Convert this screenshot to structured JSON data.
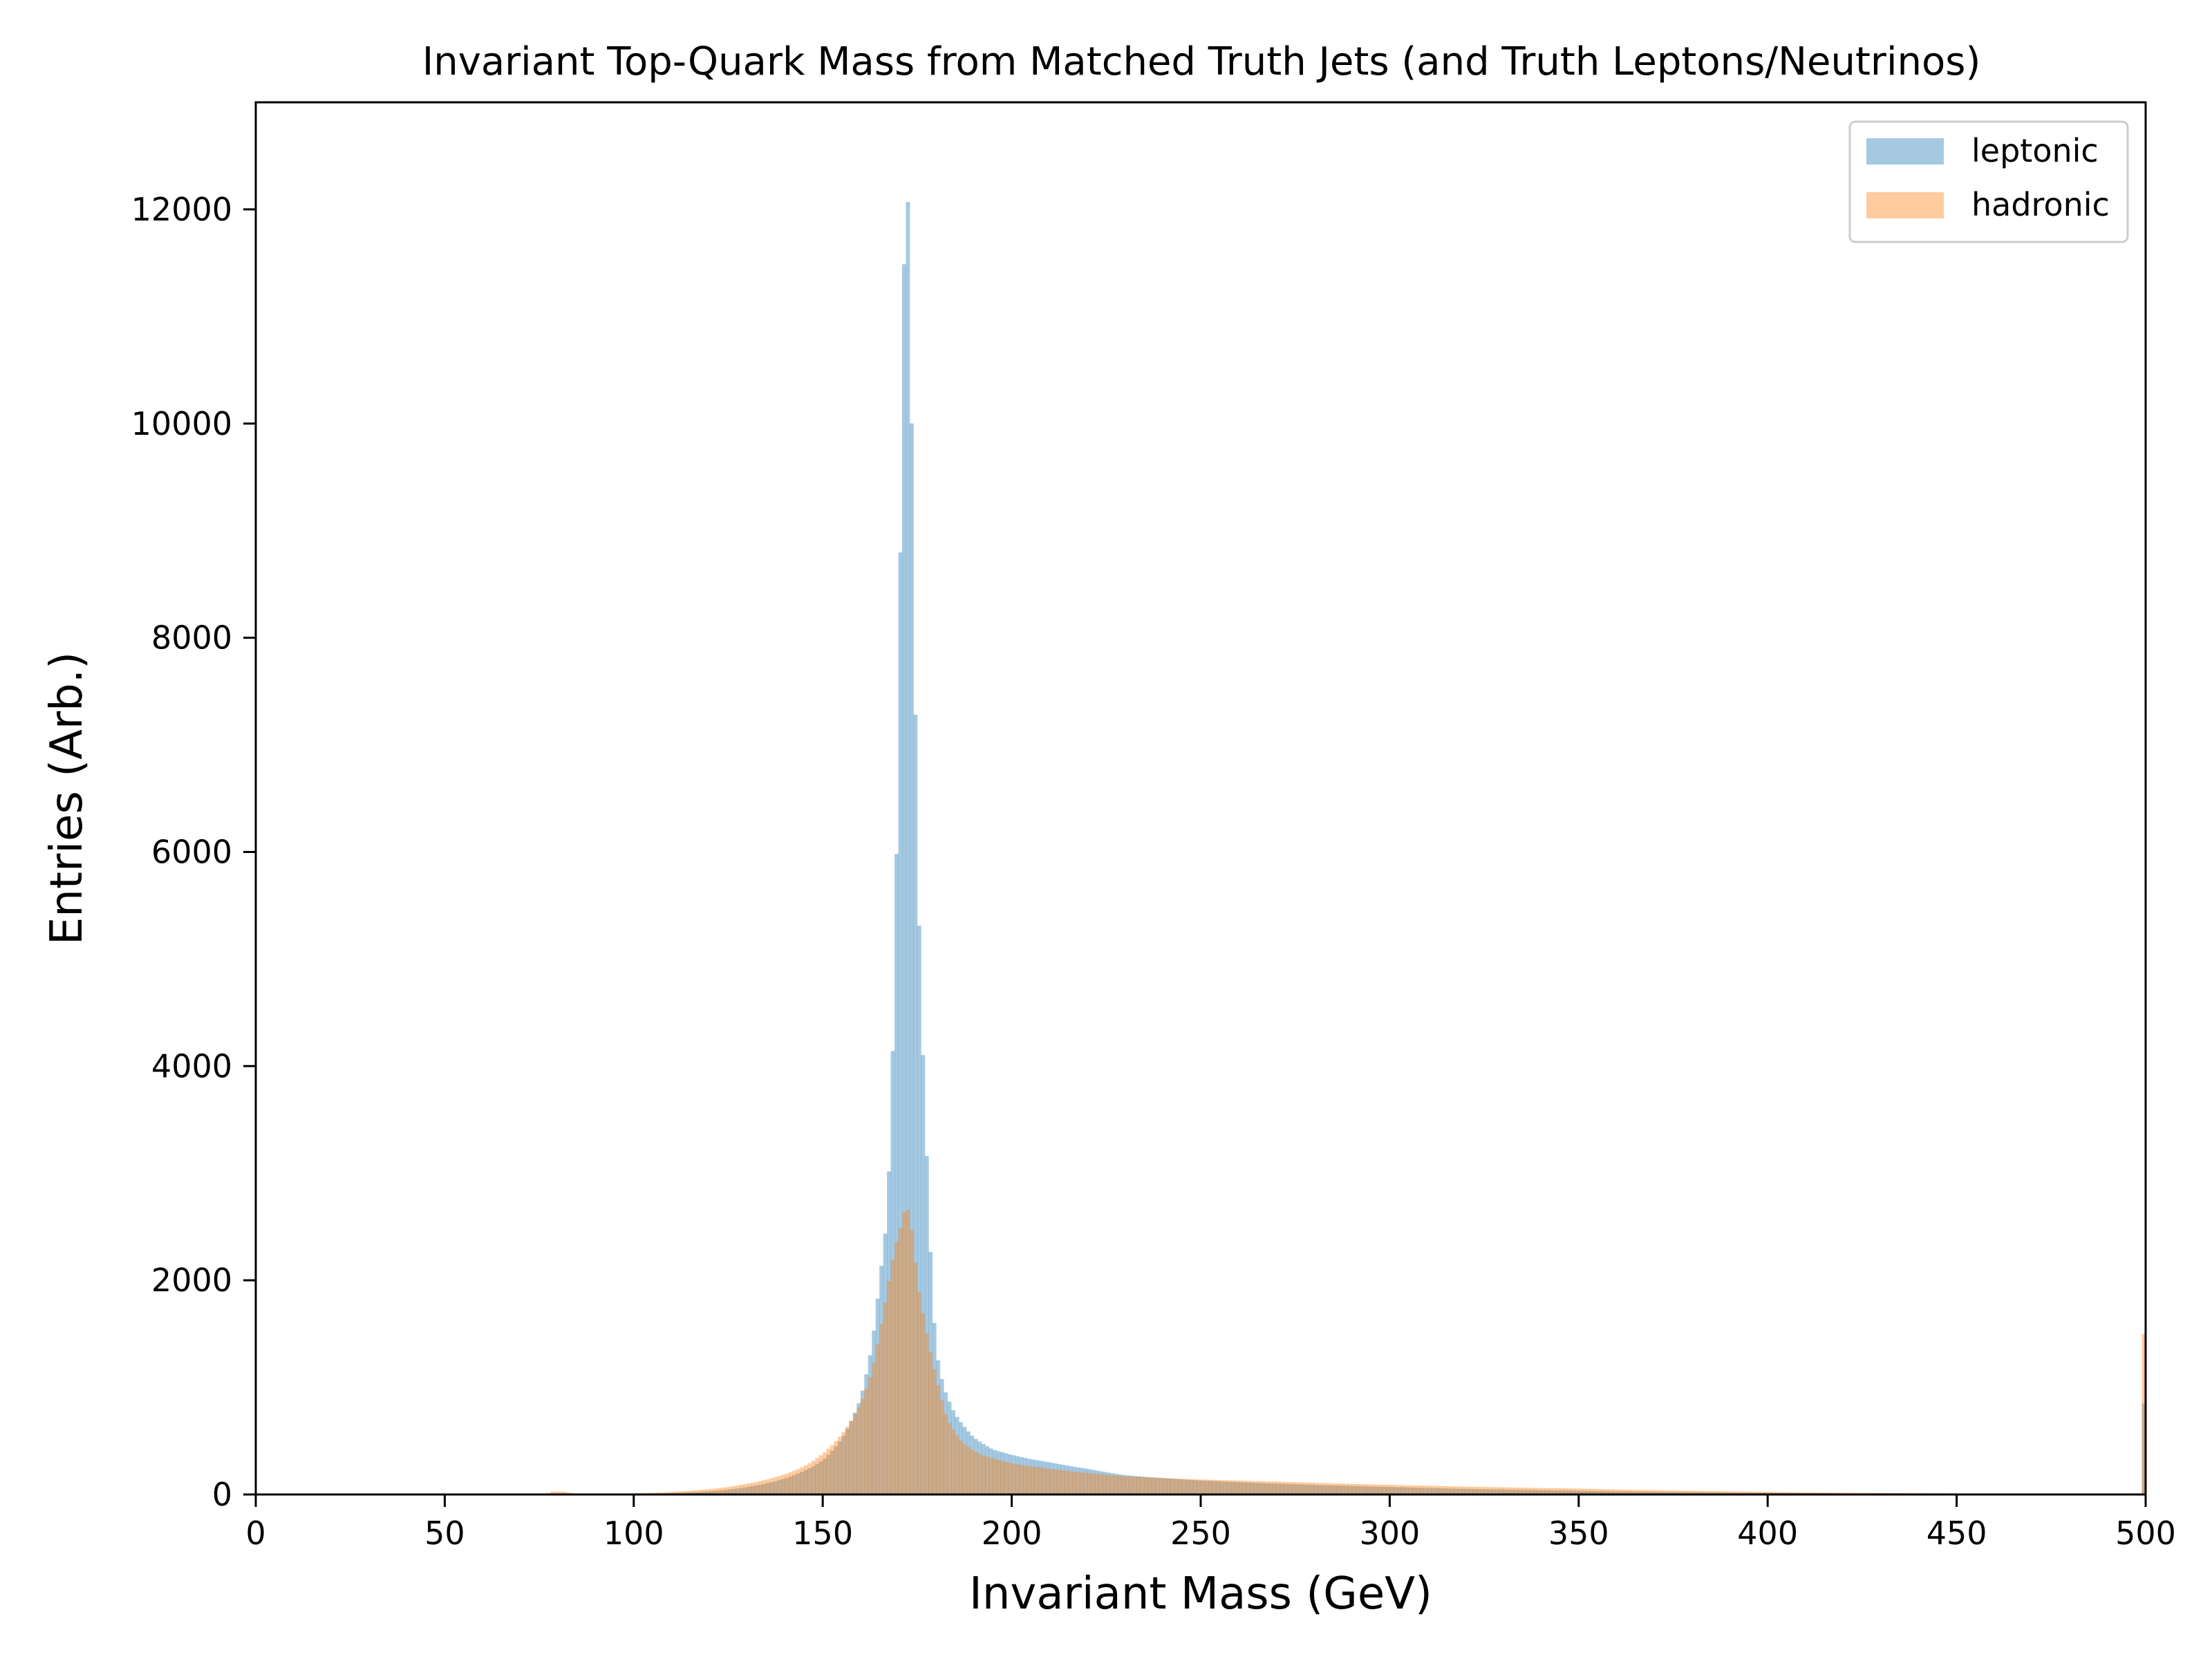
{
  "chart_data": {
    "type": "histogram",
    "title": "Invariant Top-Quark Mass from Matched Truth Jets (and Truth Leptons/Neutrinos)",
    "xlabel": "Invariant Mass (GeV)",
    "ylabel": "Entries (Arb.)",
    "xlim": [
      0,
      500
    ],
    "ylim": [
      0,
      13000
    ],
    "bin_width": 1,
    "xticks": [
      0,
      50,
      100,
      150,
      200,
      250,
      300,
      350,
      400,
      450,
      500
    ],
    "yticks": [
      0,
      2000,
      4000,
      6000,
      8000,
      10000,
      12000
    ],
    "xtick_labels": [
      "0",
      "50",
      "100",
      "150",
      "200",
      "250",
      "300",
      "350",
      "400",
      "450",
      "500"
    ],
    "ytick_labels": [
      "0",
      "2000",
      "4000",
      "6000",
      "8000",
      "10000",
      "12000"
    ],
    "grid": false,
    "legend_position": "top-right",
    "overflow_bin": {
      "x": 499.5,
      "leptonic": 850,
      "hadronic": 1500
    },
    "series": [
      {
        "name": "leptonic",
        "color": "#1f77b4",
        "alpha": 0.4,
        "points": [
          [
            80,
            0
          ],
          [
            100,
            5
          ],
          [
            120,
            30
          ],
          [
            130,
            70
          ],
          [
            140,
            150
          ],
          [
            150,
            320
          ],
          [
            155,
            520
          ],
          [
            160,
            900
          ],
          [
            163,
            1400
          ],
          [
            165,
            2000
          ],
          [
            167,
            2600
          ],
          [
            168,
            3500
          ],
          [
            169,
            4900
          ],
          [
            170,
            7300
          ],
          [
            171,
            10600
          ],
          [
            172,
            12450
          ],
          [
            173,
            11700
          ],
          [
            174,
            8550
          ],
          [
            175,
            6200
          ],
          [
            176,
            4550
          ],
          [
            177,
            3700
          ],
          [
            178,
            2700
          ],
          [
            179,
            1900
          ],
          [
            180,
            1350
          ],
          [
            182,
            1000
          ],
          [
            185,
            750
          ],
          [
            190,
            530
          ],
          [
            195,
            420
          ],
          [
            200,
            370
          ],
          [
            205,
            330
          ],
          [
            210,
            300
          ],
          [
            220,
            240
          ],
          [
            230,
            180
          ],
          [
            250,
            130
          ],
          [
            275,
            95
          ],
          [
            300,
            70
          ],
          [
            350,
            35
          ],
          [
            400,
            15
          ],
          [
            450,
            5
          ],
          [
            499,
            0
          ]
        ]
      },
      {
        "name": "hadronic",
        "color": "#ff7f0e",
        "alpha": 0.4,
        "points": [
          [
            75,
            0
          ],
          [
            78,
            30
          ],
          [
            82,
            25
          ],
          [
            86,
            5
          ],
          [
            90,
            3
          ],
          [
            100,
            10
          ],
          [
            110,
            25
          ],
          [
            120,
            50
          ],
          [
            130,
            100
          ],
          [
            140,
            190
          ],
          [
            145,
            260
          ],
          [
            150,
            380
          ],
          [
            155,
            560
          ],
          [
            160,
            850
          ],
          [
            163,
            1150
          ],
          [
            165,
            1500
          ],
          [
            167,
            1900
          ],
          [
            169,
            2300
          ],
          [
            171,
            2550
          ],
          [
            172,
            2720
          ],
          [
            173,
            2600
          ],
          [
            174,
            2350
          ],
          [
            175,
            2000
          ],
          [
            177,
            1600
          ],
          [
            180,
            1100
          ],
          [
            183,
            700
          ],
          [
            187,
            480
          ],
          [
            192,
            370
          ],
          [
            200,
            290
          ],
          [
            210,
            240
          ],
          [
            220,
            200
          ],
          [
            230,
            170
          ],
          [
            250,
            140
          ],
          [
            270,
            120
          ],
          [
            300,
            90
          ],
          [
            350,
            55
          ],
          [
            400,
            25
          ],
          [
            450,
            10
          ],
          [
            499,
            2
          ]
        ]
      }
    ]
  }
}
